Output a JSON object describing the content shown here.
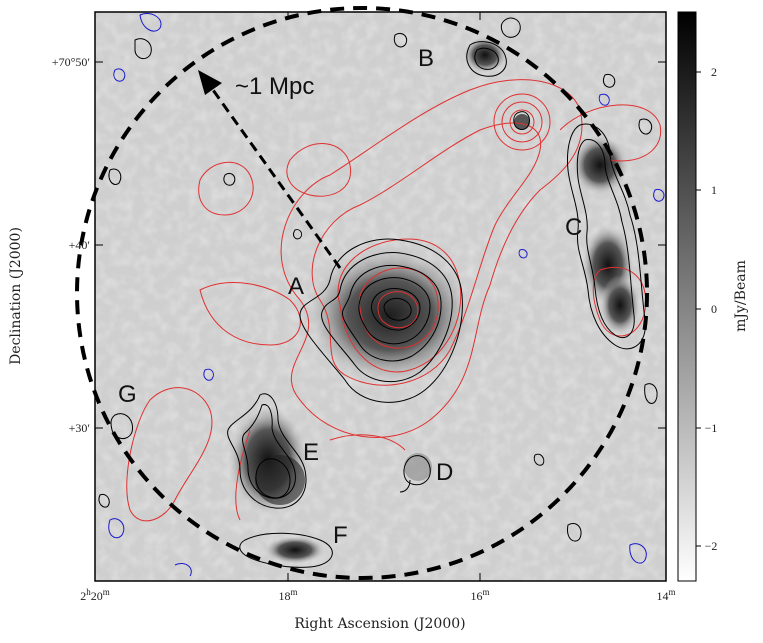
{
  "axes": {
    "x_title": "Right Ascension (J2000)",
    "y_title": "Declination (J2000)",
    "x_ticks": [
      {
        "main": "2",
        "sup": "h",
        "rest": "20",
        "sup2": "m"
      },
      {
        "main": "18",
        "sup": "m",
        "rest": "",
        "sup2": ""
      },
      {
        "main": "16",
        "sup": "m",
        "rest": "",
        "sup2": ""
      },
      {
        "main": "14",
        "sup": "m",
        "rest": "",
        "sup2": ""
      }
    ],
    "y_ticks": [
      "+70°50′",
      "+40′",
      "+30′"
    ]
  },
  "colorbar": {
    "label": "mJy/Beam",
    "ticks": [
      "2",
      "1",
      "0",
      "−1",
      "−2"
    ]
  },
  "annotations": {
    "scale_label": "~1 Mpc",
    "sources": [
      "A",
      "B",
      "C",
      "D",
      "E",
      "F",
      "G"
    ]
  },
  "colors": {
    "radio_contour": "#000000",
    "xray_contour": "#e03030",
    "negative_contour": "#1a1acc",
    "circle": "#000000"
  }
}
